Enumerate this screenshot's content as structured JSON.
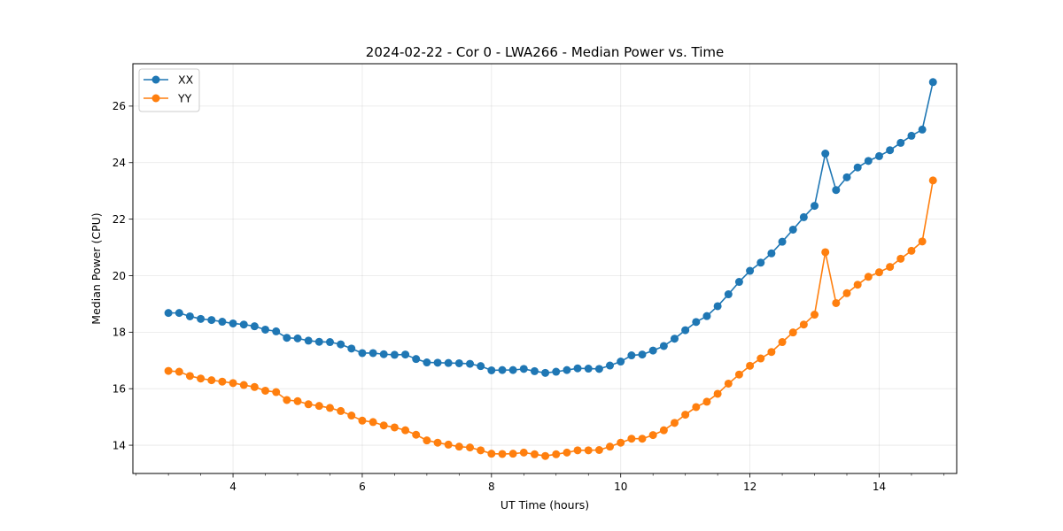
{
  "chart_data": {
    "type": "line",
    "title": "2024-02-22 - Cor 0 - LWA266 - Median Power vs. Time",
    "xlabel": "UT Time (hours)",
    "ylabel": "Median Power (CPU)",
    "xlim": [
      2.45,
      15.2
    ],
    "ylim": [
      13.0,
      27.5
    ],
    "xticks": [
      4,
      6,
      8,
      10,
      12,
      14
    ],
    "xtick_labels": [
      "4",
      "6",
      "8",
      "10",
      "12",
      "14"
    ],
    "xminor_step": 0.5,
    "yticks": [
      14,
      16,
      18,
      20,
      22,
      24,
      26
    ],
    "ytick_labels": [
      "14",
      "16",
      "18",
      "20",
      "22",
      "24",
      "26"
    ],
    "grid": true,
    "legend_position": "top-left",
    "x": [
      3.0,
      3.167,
      3.333,
      3.5,
      3.667,
      3.833,
      4.0,
      4.167,
      4.333,
      4.5,
      4.667,
      4.833,
      5.0,
      5.167,
      5.333,
      5.5,
      5.667,
      5.833,
      6.0,
      6.167,
      6.333,
      6.5,
      6.667,
      6.833,
      7.0,
      7.167,
      7.333,
      7.5,
      7.667,
      7.833,
      8.0,
      8.167,
      8.333,
      8.5,
      8.667,
      8.833,
      9.0,
      9.167,
      9.333,
      9.5,
      9.667,
      9.833,
      10.0,
      10.167,
      10.333,
      10.5,
      10.667,
      10.833,
      11.0,
      11.167,
      11.333,
      11.5,
      11.667,
      11.833,
      12.0,
      12.167,
      12.333,
      12.5,
      12.667,
      12.833,
      13.0,
      13.167,
      13.333,
      13.5,
      13.667,
      13.833,
      14.0,
      14.167,
      14.333,
      14.5,
      14.667,
      14.833
    ],
    "series": [
      {
        "name": "XX",
        "color": "#1f77b4",
        "values": [
          18.68,
          18.68,
          18.56,
          18.47,
          18.43,
          18.37,
          18.31,
          18.27,
          18.21,
          18.09,
          18.03,
          17.8,
          17.78,
          17.7,
          17.66,
          17.65,
          17.57,
          17.42,
          17.26,
          17.26,
          17.22,
          17.2,
          17.21,
          17.05,
          16.93,
          16.92,
          16.91,
          16.9,
          16.88,
          16.8,
          16.65,
          16.66,
          16.66,
          16.7,
          16.62,
          16.56,
          16.6,
          16.66,
          16.72,
          16.71,
          16.7,
          16.82,
          16.96,
          17.18,
          17.21,
          17.35,
          17.51,
          17.77,
          18.07,
          18.36,
          18.57,
          18.92,
          19.34,
          19.78,
          20.17,
          20.46,
          20.79,
          21.2,
          21.63,
          22.07,
          22.47,
          24.32,
          23.03,
          23.48,
          23.83,
          24.06,
          24.23,
          24.44,
          24.7,
          24.95,
          25.17,
          26.85
        ]
      },
      {
        "name": "YY",
        "color": "#ff7f0e",
        "values": [
          16.63,
          16.6,
          16.45,
          16.36,
          16.3,
          16.25,
          16.2,
          16.13,
          16.06,
          15.93,
          15.88,
          15.6,
          15.56,
          15.45,
          15.39,
          15.32,
          15.21,
          15.05,
          14.87,
          14.82,
          14.7,
          14.63,
          14.53,
          14.37,
          14.17,
          14.09,
          14.02,
          13.95,
          13.92,
          13.82,
          13.7,
          13.69,
          13.7,
          13.74,
          13.68,
          13.62,
          13.68,
          13.74,
          13.82,
          13.82,
          13.83,
          13.95,
          14.09,
          14.23,
          14.23,
          14.36,
          14.53,
          14.79,
          15.08,
          15.35,
          15.54,
          15.82,
          16.18,
          16.5,
          16.81,
          17.07,
          17.3,
          17.65,
          17.99,
          18.27,
          18.62,
          20.83,
          19.03,
          19.38,
          19.68,
          19.96,
          20.12,
          20.31,
          20.6,
          20.88,
          21.21,
          23.37
        ]
      }
    ]
  }
}
